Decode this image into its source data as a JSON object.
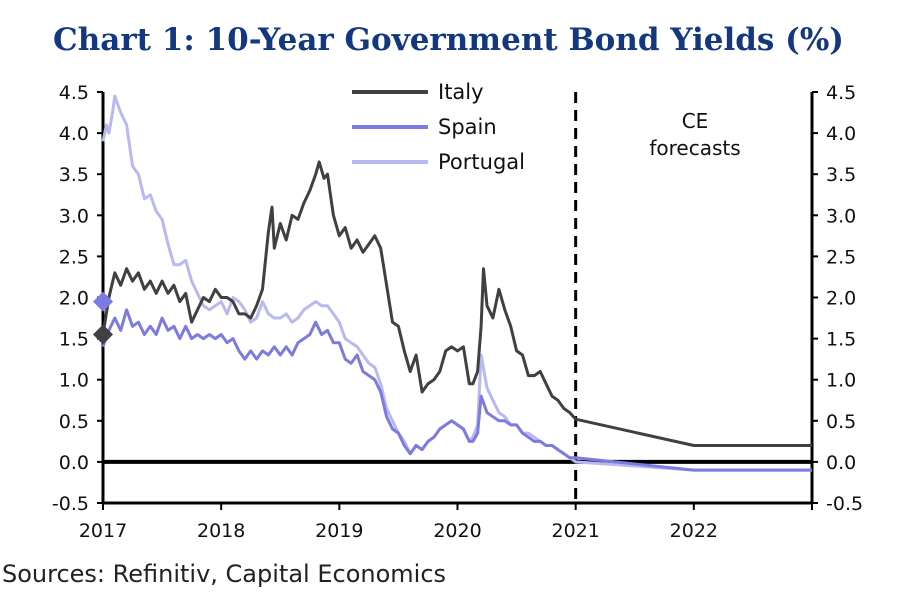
{
  "chart_data": {
    "type": "line",
    "title": "Chart 1: 10-Year Government Bond Yields (%)",
    "source": "Sources: Refinitiv, Capital Economics",
    "annotation": [
      "CE",
      "forecasts"
    ],
    "xlim": [
      2017,
      2023
    ],
    "ylim": [
      -0.5,
      4.5
    ],
    "x_ticks": [
      "2017",
      "2018",
      "2019",
      "2020",
      "2021",
      "2022"
    ],
    "y_ticks": [
      "4.5",
      "4.0",
      "3.5",
      "3.0",
      "2.5",
      "2.0",
      "1.5",
      "1.0",
      "0.5",
      "0.0",
      "-0.5"
    ],
    "forecast_start": 2021,
    "legend_position": "top-center",
    "series": [
      {
        "name": "Italy",
        "color": "#404040",
        "x": [
          2017.0,
          2017.05,
          2017.1,
          2017.15,
          2017.2,
          2017.25,
          2017.3,
          2017.35,
          2017.4,
          2017.45,
          2017.5,
          2017.55,
          2017.6,
          2017.65,
          2017.7,
          2017.75,
          2017.8,
          2017.85,
          2017.9,
          2017.95,
          2018.0,
          2018.05,
          2018.1,
          2018.15,
          2018.2,
          2018.25,
          2018.3,
          2018.35,
          2018.4,
          2018.43,
          2018.45,
          2018.5,
          2018.55,
          2018.6,
          2018.65,
          2018.7,
          2018.75,
          2018.8,
          2018.83,
          2018.87,
          2018.9,
          2018.95,
          2019.0,
          2019.05,
          2019.1,
          2019.15,
          2019.2,
          2019.25,
          2019.3,
          2019.35,
          2019.4,
          2019.45,
          2019.5,
          2019.55,
          2019.6,
          2019.65,
          2019.7,
          2019.75,
          2019.8,
          2019.85,
          2019.9,
          2019.95,
          2020.0,
          2020.05,
          2020.1,
          2020.13,
          2020.17,
          2020.2,
          2020.22,
          2020.25,
          2020.3,
          2020.35,
          2020.4,
          2020.45,
          2020.5,
          2020.55,
          2020.6,
          2020.65,
          2020.7,
          2020.75,
          2020.8,
          2020.85,
          2020.9,
          2020.95,
          2021.0,
          2022.0,
          2023.0
        ],
        "values": [
          1.55,
          2.0,
          2.3,
          2.15,
          2.35,
          2.2,
          2.3,
          2.1,
          2.2,
          2.05,
          2.2,
          2.05,
          2.15,
          1.95,
          2.05,
          1.7,
          1.85,
          2.0,
          1.95,
          2.1,
          2.0,
          2.0,
          1.95,
          1.8,
          1.8,
          1.75,
          1.9,
          2.1,
          2.8,
          3.1,
          2.6,
          2.9,
          2.7,
          3.0,
          2.95,
          3.15,
          3.3,
          3.5,
          3.65,
          3.45,
          3.5,
          3.0,
          2.75,
          2.85,
          2.6,
          2.7,
          2.55,
          2.65,
          2.75,
          2.6,
          2.15,
          1.7,
          1.65,
          1.35,
          1.1,
          1.3,
          0.85,
          0.95,
          1.0,
          1.1,
          1.35,
          1.4,
          1.35,
          1.4,
          0.95,
          0.95,
          1.1,
          1.65,
          2.35,
          1.9,
          1.75,
          2.1,
          1.85,
          1.65,
          1.35,
          1.3,
          1.05,
          1.05,
          1.1,
          0.95,
          0.8,
          0.75,
          0.65,
          0.6,
          0.52,
          0.2,
          0.2
        ]
      },
      {
        "name": "Spain",
        "color": "#7b7be0",
        "x": [
          2017.0,
          2017.05,
          2017.1,
          2017.15,
          2017.2,
          2017.25,
          2017.3,
          2017.35,
          2017.4,
          2017.45,
          2017.5,
          2017.55,
          2017.6,
          2017.65,
          2017.7,
          2017.75,
          2017.8,
          2017.85,
          2017.9,
          2017.95,
          2018.0,
          2018.05,
          2018.1,
          2018.15,
          2018.2,
          2018.25,
          2018.3,
          2018.35,
          2018.4,
          2018.45,
          2018.5,
          2018.55,
          2018.6,
          2018.65,
          2018.7,
          2018.75,
          2018.8,
          2018.85,
          2018.9,
          2018.95,
          2019.0,
          2019.05,
          2019.1,
          2019.15,
          2019.2,
          2019.25,
          2019.3,
          2019.35,
          2019.4,
          2019.45,
          2019.5,
          2019.55,
          2019.6,
          2019.65,
          2019.7,
          2019.75,
          2019.8,
          2019.85,
          2019.9,
          2019.95,
          2020.0,
          2020.05,
          2020.1,
          2020.13,
          2020.17,
          2020.2,
          2020.25,
          2020.3,
          2020.35,
          2020.4,
          2020.45,
          2020.5,
          2020.55,
          2020.6,
          2020.65,
          2020.7,
          2020.75,
          2020.8,
          2020.85,
          2020.9,
          2020.95,
          2021.0,
          2022.0,
          2023.0
        ],
        "values": [
          1.4,
          1.6,
          1.75,
          1.6,
          1.85,
          1.65,
          1.7,
          1.55,
          1.65,
          1.55,
          1.75,
          1.6,
          1.65,
          1.5,
          1.65,
          1.5,
          1.55,
          1.5,
          1.55,
          1.5,
          1.55,
          1.45,
          1.5,
          1.35,
          1.25,
          1.35,
          1.25,
          1.35,
          1.3,
          1.4,
          1.3,
          1.4,
          1.3,
          1.45,
          1.5,
          1.55,
          1.7,
          1.55,
          1.6,
          1.45,
          1.45,
          1.25,
          1.2,
          1.3,
          1.1,
          1.05,
          1.0,
          0.85,
          0.55,
          0.4,
          0.35,
          0.2,
          0.1,
          0.2,
          0.15,
          0.25,
          0.3,
          0.4,
          0.45,
          0.5,
          0.45,
          0.4,
          0.25,
          0.25,
          0.35,
          0.8,
          0.6,
          0.55,
          0.5,
          0.5,
          0.45,
          0.45,
          0.35,
          0.3,
          0.25,
          0.25,
          0.2,
          0.2,
          0.15,
          0.1,
          0.05,
          0.05,
          -0.1,
          -0.1
        ]
      },
      {
        "name": "Portugal",
        "color": "#b9b9f2",
        "x": [
          2017.0,
          2017.03,
          2017.05,
          2017.08,
          2017.1,
          2017.15,
          2017.2,
          2017.25,
          2017.3,
          2017.35,
          2017.4,
          2017.45,
          2017.5,
          2017.55,
          2017.6,
          2017.65,
          2017.7,
          2017.75,
          2017.8,
          2017.85,
          2017.9,
          2017.95,
          2018.0,
          2018.05,
          2018.1,
          2018.15,
          2018.2,
          2018.25,
          2018.3,
          2018.35,
          2018.4,
          2018.45,
          2018.5,
          2018.55,
          2018.6,
          2018.65,
          2018.7,
          2018.75,
          2018.8,
          2018.85,
          2018.9,
          2018.95,
          2019.0,
          2019.05,
          2019.1,
          2019.15,
          2019.2,
          2019.25,
          2019.3,
          2019.35,
          2019.4,
          2019.45,
          2019.5,
          2019.55,
          2019.6,
          2019.65,
          2019.7,
          2019.75,
          2019.8,
          2019.85,
          2019.9,
          2019.95,
          2020.0,
          2020.05,
          2020.1,
          2020.13,
          2020.17,
          2020.2,
          2020.25,
          2020.3,
          2020.35,
          2020.4,
          2020.45,
          2020.5,
          2020.55,
          2020.6,
          2020.65,
          2020.7,
          2020.75,
          2020.8,
          2020.85,
          2020.9,
          2020.95,
          2021.0,
          2022.0,
          2023.0
        ],
        "values": [
          3.9,
          4.1,
          4.0,
          4.25,
          4.45,
          4.25,
          4.1,
          3.6,
          3.5,
          3.2,
          3.25,
          3.05,
          2.95,
          2.65,
          2.4,
          2.4,
          2.45,
          2.2,
          2.05,
          1.9,
          1.85,
          1.9,
          1.95,
          1.8,
          2.0,
          1.95,
          1.85,
          1.7,
          1.75,
          1.95,
          1.8,
          1.75,
          1.75,
          1.8,
          1.7,
          1.75,
          1.85,
          1.9,
          1.95,
          1.9,
          1.9,
          1.8,
          1.7,
          1.5,
          1.45,
          1.4,
          1.3,
          1.2,
          1.15,
          0.95,
          0.65,
          0.5,
          0.35,
          0.25,
          0.1,
          0.2,
          0.15,
          0.25,
          0.3,
          0.4,
          0.45,
          0.5,
          0.45,
          0.4,
          0.25,
          0.3,
          0.45,
          1.3,
          0.9,
          0.75,
          0.6,
          0.55,
          0.45,
          0.45,
          0.35,
          0.35,
          0.3,
          0.25,
          0.2,
          0.2,
          0.15,
          0.1,
          0.05,
          0.0,
          -0.1,
          -0.1
        ]
      }
    ],
    "markers": [
      {
        "x": 2017.0,
        "y": 1.95,
        "color": "#7b7be0"
      },
      {
        "x": 2017.0,
        "y": 1.55,
        "color": "#404040"
      }
    ]
  }
}
